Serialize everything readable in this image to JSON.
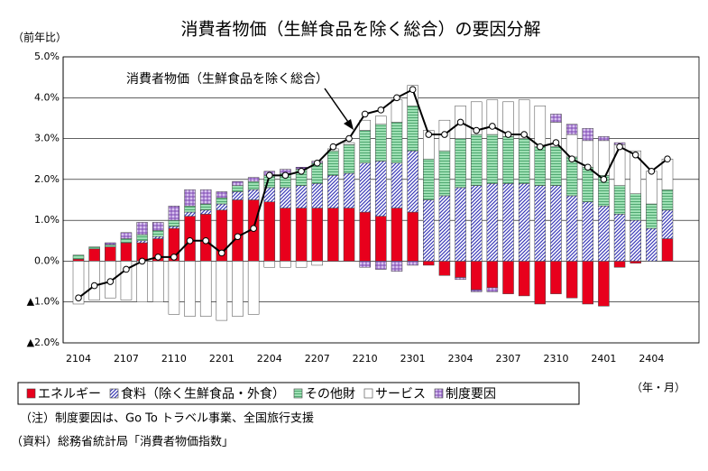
{
  "chart_data": {
    "type": "stacked-bar-line",
    "title": "消費者物価（生鮮食品を除く総合）の要因分解",
    "y_unit_label": "（前年比）",
    "x_unit_label": "（年・月）",
    "annotation": "消費者物価（生鮮食品を除く総合）",
    "notes": [
      "（注）制度要因は、Go To トラベル事業、全国旅行支援",
      "（資料）総務省統計局「消費者物価指数」"
    ],
    "categories": [
      "2104",
      null,
      null,
      "2107",
      null,
      null,
      "2110",
      null,
      null,
      "2201",
      null,
      null,
      "2204",
      null,
      null,
      "2207",
      null,
      null,
      "2210",
      null,
      null,
      "2301",
      null,
      null,
      "2304",
      null,
      null,
      "2307",
      null,
      null,
      "2310",
      null,
      null,
      "2401",
      null,
      null,
      "2404",
      null
    ],
    "ylim": [
      -2,
      5
    ],
    "yticks": [
      {
        "value": 5,
        "label": "5.0%"
      },
      {
        "value": 4,
        "label": "4.0%"
      },
      {
        "value": 3,
        "label": "3.0%"
      },
      {
        "value": 2,
        "label": "2.0%"
      },
      {
        "value": 1,
        "label": "1.0%"
      },
      {
        "value": 0,
        "label": "0.0%"
      },
      {
        "value": -1,
        "label": "▲1.0%"
      },
      {
        "value": -2,
        "label": "▲2.0%"
      }
    ],
    "grid": true,
    "series": [
      {
        "name": "エネルギー",
        "color": "#e8001c",
        "pattern": "solid",
        "values": [
          0.05,
          0.3,
          0.35,
          0.45,
          0.45,
          0.55,
          0.8,
          1.1,
          1.15,
          1.25,
          1.5,
          1.5,
          1.45,
          1.3,
          1.3,
          1.3,
          1.3,
          1.3,
          1.2,
          1.1,
          1.3,
          1.2,
          -0.1,
          -0.35,
          -0.4,
          -0.7,
          -0.65,
          -0.8,
          -0.85,
          -1.05,
          -0.8,
          -0.9,
          -1.05,
          -1.1,
          -0.15,
          -0.05,
          0,
          0.55
        ]
      },
      {
        "name": "食料（除く生鮮食品・外食）",
        "color": "#3a3ab8",
        "pattern": "hatch",
        "values": [
          0,
          0,
          0,
          0,
          0.05,
          0.05,
          0.05,
          0.1,
          0.1,
          0.15,
          0.2,
          0.25,
          0.35,
          0.5,
          0.55,
          0.6,
          0.8,
          0.85,
          1.2,
          1.35,
          1.1,
          1.5,
          1.5,
          1.6,
          1.8,
          1.85,
          1.9,
          1.9,
          1.9,
          1.85,
          1.85,
          1.6,
          1.45,
          1.35,
          1.15,
          1.0,
          0.8,
          0.7
        ]
      },
      {
        "name": "その他財",
        "color": "#7ccf9c",
        "pattern": "lines",
        "values": [
          0.1,
          0.05,
          0.05,
          0.1,
          0.15,
          0.15,
          0.15,
          0.15,
          0.15,
          0.15,
          0.15,
          0.2,
          0.3,
          0.35,
          0.4,
          0.5,
          0.6,
          0.7,
          0.8,
          0.9,
          1.0,
          1.1,
          1.0,
          1.1,
          1.2,
          1.25,
          1.2,
          1.15,
          1.1,
          0.95,
          0.95,
          0.95,
          0.85,
          0.75,
          0.7,
          0.65,
          0.6,
          0.5
        ]
      },
      {
        "name": "サービス",
        "color": "#ffffff",
        "pattern": "solid",
        "values": [
          -1.05,
          -0.95,
          -0.9,
          -0.95,
          -1.0,
          -1.0,
          -1.3,
          -1.35,
          -1.35,
          -1.45,
          -1.35,
          -1.3,
          -0.15,
          -0.15,
          -0.15,
          -0.1,
          0.05,
          0.05,
          0.25,
          0.2,
          0.55,
          0.5,
          0.7,
          0.75,
          0.8,
          0.8,
          0.85,
          0.85,
          0.95,
          1.0,
          0.6,
          0.55,
          0.65,
          0.85,
          1.0,
          1.05,
          0.8,
          0.75
        ]
      },
      {
        "name": "制度要因",
        "color": "#9966cc",
        "pattern": "check",
        "values": [
          0,
          0,
          0.05,
          0.15,
          0.3,
          0.2,
          0.35,
          0.4,
          0.35,
          0.15,
          0.1,
          0.1,
          0.1,
          0.1,
          0.05,
          0.05,
          0,
          0,
          -0.15,
          -0.2,
          -0.25,
          -0.1,
          0,
          0,
          -0.05,
          -0.05,
          -0.1,
          0,
          0,
          0,
          0.2,
          0.25,
          0.3,
          0.1,
          0.05,
          0,
          0,
          0
        ]
      }
    ],
    "line": {
      "color": "#000000",
      "values": [
        -0.9,
        -0.6,
        -0.5,
        -0.2,
        0.0,
        0.1,
        0.1,
        0.5,
        0.5,
        0.2,
        0.6,
        0.8,
        2.1,
        2.1,
        2.2,
        2.4,
        2.8,
        3.0,
        3.6,
        3.7,
        4.0,
        4.2,
        3.1,
        3.1,
        3.4,
        3.2,
        3.3,
        3.1,
        3.1,
        2.8,
        2.9,
        2.5,
        2.3,
        2.0,
        2.8,
        2.6,
        2.2,
        2.5
      ]
    }
  }
}
